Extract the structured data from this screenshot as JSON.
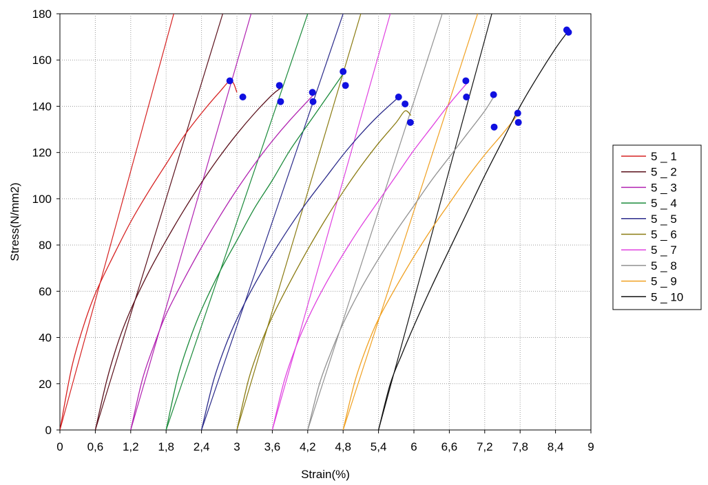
{
  "chart_data": {
    "type": "line",
    "title": "",
    "xlabel": "Strain(%)",
    "ylabel": "Stress(N/mm2)",
    "xlim": [
      0,
      9
    ],
    "ylim": [
      0,
      180
    ],
    "x_ticks": [
      "0",
      "0,6",
      "1,2",
      "1,8",
      "2,4",
      "3",
      "3,6",
      "4,2",
      "4,8",
      "5,4",
      "6",
      "6,6",
      "7,2",
      "7,8",
      "8,4",
      "9"
    ],
    "x_tick_values": [
      0,
      0.6,
      1.2,
      1.8,
      2.4,
      3.0,
      3.6,
      4.2,
      4.8,
      5.4,
      6.0,
      6.6,
      7.2,
      7.8,
      8.4,
      9.0
    ],
    "y_ticks": [
      "0",
      "20",
      "40",
      "60",
      "80",
      "100",
      "120",
      "140",
      "160",
      "180"
    ],
    "y_tick_values": [
      0,
      20,
      40,
      60,
      80,
      100,
      120,
      140,
      160,
      180
    ],
    "grid": true,
    "legend_position": "right",
    "series": [
      {
        "name": "5 _ 1",
        "color": "#d62020",
        "x": [
          0,
          0.2,
          0.4,
          0.6,
          0.9,
          1.2,
          1.5,
          1.8,
          2.1,
          2.4,
          2.7,
          2.9,
          3.0
        ],
        "y": [
          0,
          27,
          45,
          59,
          75,
          90,
          103,
          115,
          127,
          137,
          146,
          151,
          146
        ]
      },
      {
        "name": "5 _ 2",
        "color": "#5a0f1a",
        "x": [
          0.6,
          0.8,
          1.0,
          1.2,
          1.5,
          1.8,
          2.1,
          2.4,
          2.7,
          3.0,
          3.3,
          3.6,
          3.75
        ],
        "y": [
          0,
          22,
          39,
          52,
          68,
          82,
          95,
          107,
          118,
          128,
          137,
          145,
          148
        ]
      },
      {
        "name": "5 _ 3",
        "color": "#b020b0",
        "x": [
          1.2,
          1.4,
          1.6,
          1.8,
          2.1,
          2.4,
          2.7,
          3.0,
          3.3,
          3.6,
          3.9,
          4.3
        ],
        "y": [
          0,
          22,
          37,
          50,
          65,
          79,
          92,
          104,
          115,
          125,
          134,
          145
        ]
      },
      {
        "name": "5 _ 4",
        "color": "#1a8a3a",
        "x": [
          1.8,
          2.0,
          2.2,
          2.4,
          2.7,
          3.0,
          3.3,
          3.6,
          3.9,
          4.2,
          4.5,
          4.8
        ],
        "y": [
          0,
          23,
          39,
          52,
          68,
          82,
          96,
          108,
          121,
          132,
          143,
          154
        ]
      },
      {
        "name": "5 _ 5",
        "color": "#2a2a8a",
        "x": [
          2.4,
          2.6,
          2.8,
          3.0,
          3.3,
          3.6,
          3.9,
          4.2,
          4.5,
          4.8,
          5.1,
          5.4,
          5.7
        ],
        "y": [
          0,
          21,
          36,
          48,
          63,
          76,
          88,
          99,
          109,
          119,
          128,
          136,
          143
        ]
      },
      {
        "name": "5 _ 6",
        "color": "#8a7a10",
        "x": [
          3.0,
          3.2,
          3.4,
          3.6,
          3.9,
          4.2,
          4.5,
          4.8,
          5.1,
          5.4,
          5.7,
          5.85,
          5.95
        ],
        "y": [
          0,
          22,
          37,
          49,
          64,
          78,
          91,
          103,
          114,
          124,
          133,
          138,
          136
        ]
      },
      {
        "name": "5 _ 7",
        "color": "#e040e0",
        "x": [
          3.6,
          3.8,
          4.0,
          4.2,
          4.5,
          4.8,
          5.1,
          5.4,
          5.7,
          6.0,
          6.3,
          6.6,
          6.9
        ],
        "y": [
          0,
          21,
          36,
          48,
          63,
          76,
          88,
          99,
          110,
          121,
          131,
          141,
          150
        ]
      },
      {
        "name": "5 _ 8",
        "color": "#909090",
        "x": [
          4.2,
          4.4,
          4.6,
          4.8,
          5.1,
          5.4,
          5.7,
          6.0,
          6.3,
          6.6,
          6.9,
          7.2,
          7.35
        ],
        "y": [
          0,
          20,
          34,
          46,
          61,
          74,
          86,
          97,
          108,
          118,
          128,
          138,
          144
        ]
      },
      {
        "name": "5 _ 9",
        "color": "#f0a020",
        "x": [
          4.8,
          5.0,
          5.2,
          5.4,
          5.7,
          6.0,
          6.3,
          6.6,
          6.9,
          7.2,
          7.5,
          7.75
        ],
        "y": [
          0,
          21,
          36,
          48,
          62,
          75,
          87,
          98,
          109,
          119,
          128,
          136
        ]
      },
      {
        "name": "5 _ 10",
        "color": "#111111",
        "x": [
          5.4,
          5.6,
          5.8,
          6.0,
          6.3,
          6.6,
          6.9,
          7.2,
          7.5,
          7.8,
          8.1,
          8.4,
          8.6
        ],
        "y": [
          0,
          20,
          33,
          45,
          62,
          78,
          94,
          110,
          125,
          140,
          153,
          165,
          172
        ]
      }
    ],
    "reloading_lines": [
      {
        "color": "#d62020",
        "x": [
          0.0,
          1.93
        ],
        "y": [
          0,
          180
        ]
      },
      {
        "color": "#5a0f1a",
        "x": [
          0.6,
          2.76
        ],
        "y": [
          0,
          180
        ]
      },
      {
        "color": "#b020b0",
        "x": [
          1.2,
          3.24
        ],
        "y": [
          0,
          180
        ]
      },
      {
        "color": "#1a8a3a",
        "x": [
          1.8,
          4.2
        ],
        "y": [
          0,
          180
        ]
      },
      {
        "color": "#2a2a8a",
        "x": [
          2.4,
          4.8
        ],
        "y": [
          0,
          180
        ]
      },
      {
        "color": "#8a7a10",
        "x": [
          3.0,
          5.1
        ],
        "y": [
          0,
          180
        ]
      },
      {
        "color": "#e040e0",
        "x": [
          3.6,
          5.6
        ],
        "y": [
          0,
          180
        ]
      },
      {
        "color": "#909090",
        "x": [
          4.2,
          6.48
        ],
        "y": [
          0,
          180
        ]
      },
      {
        "color": "#f0a020",
        "x": [
          4.8,
          7.08
        ],
        "y": [
          0,
          180
        ]
      },
      {
        "color": "#111111",
        "x": [
          5.4,
          7.32
        ],
        "y": [
          0,
          180
        ]
      }
    ],
    "markers": [
      {
        "x": 2.88,
        "y": 151
      },
      {
        "x": 3.1,
        "y": 144
      },
      {
        "x": 3.72,
        "y": 149
      },
      {
        "x": 3.74,
        "y": 142
      },
      {
        "x": 4.28,
        "y": 146
      },
      {
        "x": 4.29,
        "y": 142
      },
      {
        "x": 4.8,
        "y": 155
      },
      {
        "x": 4.84,
        "y": 149
      },
      {
        "x": 5.74,
        "y": 144
      },
      {
        "x": 5.85,
        "y": 141
      },
      {
        "x": 5.94,
        "y": 133
      },
      {
        "x": 6.88,
        "y": 151
      },
      {
        "x": 6.89,
        "y": 144
      },
      {
        "x": 7.35,
        "y": 145
      },
      {
        "x": 7.36,
        "y": 131
      },
      {
        "x": 7.76,
        "y": 137
      },
      {
        "x": 7.77,
        "y": 133
      },
      {
        "x": 8.59,
        "y": 173
      },
      {
        "x": 8.62,
        "y": 172
      }
    ],
    "marker_color": "#1010e0"
  }
}
